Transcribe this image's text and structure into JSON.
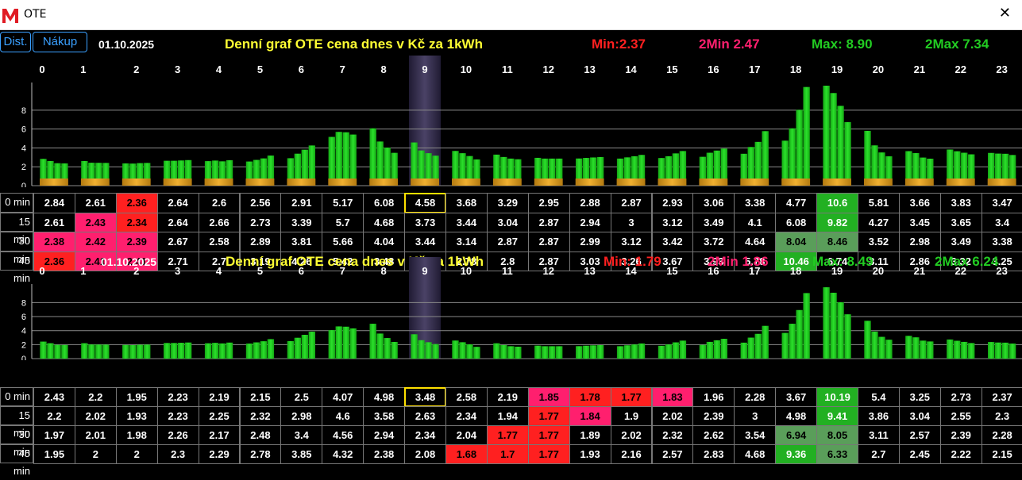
{
  "window": {
    "title": "OTE",
    "close_icon": "close-icon",
    "logo_icon": "ote-logo-icon"
  },
  "buttons": {
    "dist": "Dist.",
    "nakup": "Nákup"
  },
  "colors": {
    "bar": "#22cc22",
    "bar_base": "#e0a020",
    "highlight": "#3a3357",
    "min": "#ff2020",
    "min2": "#ff1f6e",
    "max": "#22cc22",
    "max_cell": "#5a9e5a",
    "title": "#ffff33",
    "current_box": "#ffe000"
  },
  "row_labels": [
    "0 min",
    "15 min",
    "30 min",
    "45 min"
  ],
  "panels": [
    {
      "date": "01.10.2025",
      "title": "Denní graf OTE cena dnes  v Kč za 1kWh",
      "min": "Min:2.37",
      "min2": "2Min 2.47",
      "max": "Max: 8.90",
      "max2": "2Max 7.34",
      "hours": [
        "0",
        "1",
        "2",
        "3",
        "4",
        "5",
        "6",
        "7",
        "8",
        "9",
        "10",
        "11",
        "12",
        "13",
        "14",
        "15",
        "16",
        "17",
        "18",
        "19",
        "20",
        "21",
        "22",
        "23"
      ],
      "current_hour": 9,
      "has_base": true,
      "chart_data": {
        "type": "bar",
        "y_ticks": [
          "0",
          "2",
          "4",
          "6",
          "8"
        ],
        "ylim": [
          0,
          10.6
        ],
        "values": [
          [
            2.84,
            2.61,
            2.38,
            2.36
          ],
          [
            2.61,
            2.43,
            2.42,
            2.41
          ],
          [
            2.36,
            2.34,
            2.39,
            2.41
          ],
          [
            2.64,
            2.64,
            2.67,
            2.71
          ],
          [
            2.6,
            2.66,
            2.58,
            2.7
          ],
          [
            2.56,
            2.73,
            2.89,
            3.19
          ],
          [
            2.91,
            3.39,
            3.81,
            4.26
          ],
          [
            5.17,
            5.7,
            5.66,
            5.42
          ],
          [
            6.08,
            4.68,
            4.04,
            3.48
          ],
          [
            4.58,
            3.73,
            3.44,
            3.18
          ],
          [
            3.68,
            3.44,
            3.14,
            2.78
          ],
          [
            3.29,
            3.04,
            2.87,
            2.8
          ],
          [
            2.95,
            2.87,
            2.87,
            2.87
          ],
          [
            2.88,
            2.94,
            2.99,
            3.03
          ],
          [
            2.87,
            3,
            3.12,
            3.26
          ],
          [
            2.93,
            3.12,
            3.42,
            3.67
          ],
          [
            3.06,
            3.49,
            3.72,
            3.93
          ],
          [
            3.38,
            4.1,
            4.64,
            5.78
          ],
          [
            4.77,
            6.08,
            8.04,
            10.46
          ],
          [
            10.6,
            9.82,
            8.46,
            6.74
          ],
          [
            5.81,
            4.27,
            3.52,
            3.11
          ],
          [
            3.66,
            3.45,
            2.98,
            2.86
          ],
          [
            3.83,
            3.65,
            3.49,
            3.32
          ],
          [
            3.47,
            3.4,
            3.38,
            3.25
          ]
        ]
      },
      "table": [
        [
          "2.84",
          "2.61",
          "2.36",
          "2.64",
          "2.6",
          "2.56",
          "2.91",
          "5.17",
          "6.08",
          "4.58",
          "3.68",
          "3.29",
          "2.95",
          "2.88",
          "2.87",
          "2.93",
          "3.06",
          "3.38",
          "4.77",
          "10.6",
          "5.81",
          "3.66",
          "3.83",
          "3.47"
        ],
        [
          "2.61",
          "2.43",
          "2.34",
          "2.64",
          "2.66",
          "2.73",
          "3.39",
          "5.7",
          "4.68",
          "3.73",
          "3.44",
          "3.04",
          "2.87",
          "2.94",
          "3",
          "3.12",
          "3.49",
          "4.1",
          "6.08",
          "9.82",
          "4.27",
          "3.45",
          "3.65",
          "3.4"
        ],
        [
          "2.38",
          "2.42",
          "2.39",
          "2.67",
          "2.58",
          "2.89",
          "3.81",
          "5.66",
          "4.04",
          "3.44",
          "3.14",
          "2.87",
          "2.87",
          "2.99",
          "3.12",
          "3.42",
          "3.72",
          "4.64",
          "8.04",
          "8.46",
          "3.52",
          "2.98",
          "3.49",
          "3.38"
        ],
        [
          "2.36",
          "2.41",
          "2.41",
          "2.71",
          "2.7",
          "3.19",
          "4.26",
          "5.42",
          "3.48",
          "3.18",
          "2.78",
          "2.8",
          "2.87",
          "3.03",
          "3.26",
          "3.67",
          "3.93",
          "5.78",
          "10.46",
          "6.74",
          "3.11",
          "2.86",
          "3.32",
          "3.25"
        ]
      ],
      "cell_styles": {
        "0-2": "min",
        "1-1": "min2",
        "1-2": "min",
        "2-0": "min2",
        "2-1": "min2",
        "2-2": "min2",
        "3-0": "min",
        "3-1": "min2",
        "3-2": "min2",
        "0-19": "max",
        "1-19": "max",
        "2-18": "maxdim",
        "2-19": "maxdim",
        "3-18": "max"
      }
    },
    {
      "date": "01.10.2025",
      "title": "Denní graf OTE cena dnes  v Kč za 1kWh",
      "min": "Min: 1.79",
      "min2": "2Min 1.86",
      "max": "Max: 8.49",
      "max2": "2Max 6.24",
      "hours": [
        "0",
        "1",
        "2",
        "3",
        "4",
        "5",
        "6",
        "7",
        "8",
        "9",
        "10",
        "11",
        "12",
        "13",
        "14",
        "15",
        "16",
        "17",
        "18",
        "19",
        "20",
        "21",
        "22",
        "23"
      ],
      "current_hour": 9,
      "has_base": false,
      "chart_data": {
        "type": "bar",
        "y_ticks": [
          "0",
          "2",
          "4",
          "6",
          "8"
        ],
        "ylim": [
          0,
          10.2
        ],
        "values": [
          [
            2.43,
            2.2,
            1.97,
            1.95
          ],
          [
            2.2,
            2.02,
            2.01,
            2
          ],
          [
            1.95,
            1.93,
            1.98,
            2
          ],
          [
            2.23,
            2.23,
            2.26,
            2.3
          ],
          [
            2.19,
            2.25,
            2.17,
            2.29
          ],
          [
            2.15,
            2.32,
            2.48,
            2.78
          ],
          [
            2.5,
            2.98,
            3.4,
            3.85
          ],
          [
            4.07,
            4.6,
            4.56,
            4.32
          ],
          [
            4.98,
            3.58,
            2.94,
            2.38
          ],
          [
            3.48,
            2.63,
            2.34,
            2.08
          ],
          [
            2.58,
            2.34,
            2.04,
            1.68
          ],
          [
            2.19,
            1.94,
            1.77,
            1.7
          ],
          [
            1.85,
            1.77,
            1.77,
            1.77
          ],
          [
            1.78,
            1.84,
            1.89,
            1.93
          ],
          [
            1.77,
            1.9,
            2.02,
            2.16
          ],
          [
            1.83,
            2.02,
            2.32,
            2.57
          ],
          [
            1.96,
            2.39,
            2.62,
            2.83
          ],
          [
            2.28,
            3,
            3.54,
            4.68
          ],
          [
            3.67,
            4.98,
            6.94,
            9.36
          ],
          [
            10.19,
            9.41,
            8.05,
            6.33
          ],
          [
            5.4,
            3.86,
            3.11,
            2.7
          ],
          [
            3.25,
            3.04,
            2.57,
            2.45
          ],
          [
            2.73,
            2.55,
            2.39,
            2.22
          ],
          [
            2.37,
            2.3,
            2.28,
            2.15
          ]
        ]
      },
      "table": [
        [
          "2.43",
          "2.2",
          "1.95",
          "2.23",
          "2.19",
          "2.15",
          "2.5",
          "4.07",
          "4.98",
          "3.48",
          "2.58",
          "2.19",
          "1.85",
          "1.78",
          "1.77",
          "1.83",
          "1.96",
          "2.28",
          "3.67",
          "10.19",
          "5.4",
          "3.25",
          "2.73",
          "2.37"
        ],
        [
          "2.2",
          "2.02",
          "1.93",
          "2.23",
          "2.25",
          "2.32",
          "2.98",
          "4.6",
          "3.58",
          "2.63",
          "2.34",
          "1.94",
          "1.77",
          "1.84",
          "1.9",
          "2.02",
          "2.39",
          "3",
          "4.98",
          "9.41",
          "3.86",
          "3.04",
          "2.55",
          "2.3"
        ],
        [
          "1.97",
          "2.01",
          "1.98",
          "2.26",
          "2.17",
          "2.48",
          "3.4",
          "4.56",
          "2.94",
          "2.34",
          "2.04",
          "1.77",
          "1.77",
          "1.89",
          "2.02",
          "2.32",
          "2.62",
          "3.54",
          "6.94",
          "8.05",
          "3.11",
          "2.57",
          "2.39",
          "2.28"
        ],
        [
          "1.95",
          "2",
          "2",
          "2.3",
          "2.29",
          "2.78",
          "3.85",
          "4.32",
          "2.38",
          "2.08",
          "1.68",
          "1.7",
          "1.77",
          "1.93",
          "2.16",
          "2.57",
          "2.83",
          "4.68",
          "9.36",
          "6.33",
          "2.7",
          "2.45",
          "2.22",
          "2.15"
        ]
      ],
      "cell_styles": {
        "0-12": "min2",
        "0-13": "min",
        "0-14": "min",
        "0-15": "min2",
        "1-12": "min",
        "1-13": "min2",
        "2-11": "min",
        "2-12": "min",
        "3-10": "min",
        "3-11": "min",
        "3-12": "min",
        "0-19": "max",
        "1-19": "max",
        "2-18": "maxdim",
        "2-19": "maxdim",
        "3-18": "max",
        "3-19": "maxdim"
      }
    }
  ]
}
